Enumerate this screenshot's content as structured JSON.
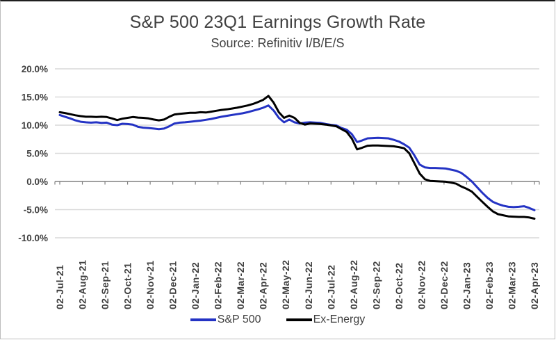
{
  "chart_data": {
    "type": "line",
    "title": "S&P 500 23Q1 Earnings Growth Rate",
    "subtitle": "Source: Refinitiv I/B/E/S",
    "xlabel": "",
    "ylabel": "",
    "ylim": [
      -10,
      20
    ],
    "grid": true,
    "legend_position": "bottom",
    "x_labels": [
      "02-Jul-21",
      "02-Aug-21",
      "02-Sep-21",
      "02-Oct-21",
      "02-Nov-21",
      "02-Dec-21",
      "02-Jan-22",
      "02-Feb-22",
      "02-Mar-22",
      "02-Apr-22",
      "02-May-22",
      "02-Jun-22",
      "02-Jul-22",
      "02-Aug-22",
      "02-Sep-22",
      "02-Oct-22",
      "02-Nov-22",
      "02-Dec-22",
      "02-Jan-23",
      "02-Feb-23",
      "02-Mar-23",
      "02-Apr-23"
    ],
    "y_ticks": {
      "values": [
        20,
        15,
        10,
        5,
        0,
        -5,
        -10
      ],
      "labels": [
        "20.0%",
        "15.0%",
        "10.0%",
        "5.0%",
        "0.0%",
        "-5.0%",
        "-10.0%"
      ]
    },
    "x_sampling": "weekly, 02-Jul-21 through 02-Apr-23",
    "series": [
      {
        "name": "S&P 500",
        "color": "#2433c4",
        "values": [
          11.8,
          11.5,
          11.2,
          10.85,
          10.6,
          10.5,
          10.45,
          10.5,
          10.4,
          10.45,
          10.1,
          10.0,
          10.25,
          10.2,
          10.1,
          9.7,
          9.55,
          9.5,
          9.4,
          9.3,
          9.4,
          9.8,
          10.3,
          10.45,
          10.5,
          10.6,
          10.7,
          10.8,
          10.95,
          11.1,
          11.3,
          11.5,
          11.65,
          11.8,
          11.95,
          12.1,
          12.3,
          12.55,
          12.8,
          13.1,
          13.5,
          12.6,
          11.3,
          10.5,
          11.0,
          10.5,
          10.3,
          10.45,
          10.5,
          10.45,
          10.4,
          10.2,
          10.05,
          9.95,
          9.5,
          9.2,
          8.4,
          7.0,
          7.3,
          7.65,
          7.7,
          7.75,
          7.7,
          7.65,
          7.4,
          7.1,
          6.6,
          6.0,
          4.6,
          3.0,
          2.5,
          2.4,
          2.4,
          2.35,
          2.3,
          2.1,
          1.9,
          1.5,
          0.8,
          0.0,
          -1.0,
          -2.0,
          -2.9,
          -3.6,
          -4.0,
          -4.3,
          -4.5,
          -4.55,
          -4.5,
          -4.4,
          -4.7,
          -5.1
        ]
      },
      {
        "name": "Ex-Energy",
        "color": "#000000",
        "values": [
          12.3,
          12.15,
          11.95,
          11.75,
          11.6,
          11.5,
          11.5,
          11.45,
          11.5,
          11.45,
          11.2,
          10.9,
          11.15,
          11.3,
          11.45,
          11.35,
          11.3,
          11.2,
          11.0,
          10.85,
          11.0,
          11.5,
          11.9,
          12.0,
          12.1,
          12.2,
          12.2,
          12.3,
          12.25,
          12.4,
          12.55,
          12.7,
          12.8,
          12.95,
          13.1,
          13.3,
          13.5,
          13.75,
          14.1,
          14.5,
          15.2,
          14.0,
          12.3,
          11.3,
          11.7,
          11.3,
          10.4,
          10.1,
          10.3,
          10.25,
          10.2,
          10.1,
          9.95,
          9.8,
          9.3,
          8.8,
          7.6,
          5.7,
          6.0,
          6.35,
          6.4,
          6.4,
          6.35,
          6.3,
          6.25,
          6.1,
          5.9,
          5.0,
          3.2,
          1.4,
          0.4,
          0.1,
          0.05,
          0.0,
          -0.05,
          -0.2,
          -0.4,
          -0.9,
          -1.3,
          -1.8,
          -2.7,
          -3.6,
          -4.5,
          -5.3,
          -5.8,
          -6.0,
          -6.2,
          -6.25,
          -6.3,
          -6.3,
          -6.4,
          -6.6
        ]
      }
    ],
    "colors": {
      "grid": "#d9d9d9",
      "zero_axis": "#808080",
      "tick_label": "#404040",
      "title_text": "#404040"
    }
  },
  "legend": {
    "items": [
      {
        "label": "S&P 500",
        "color": "#2433c4"
      },
      {
        "label": "Ex-Energy",
        "color": "#000000"
      }
    ]
  }
}
